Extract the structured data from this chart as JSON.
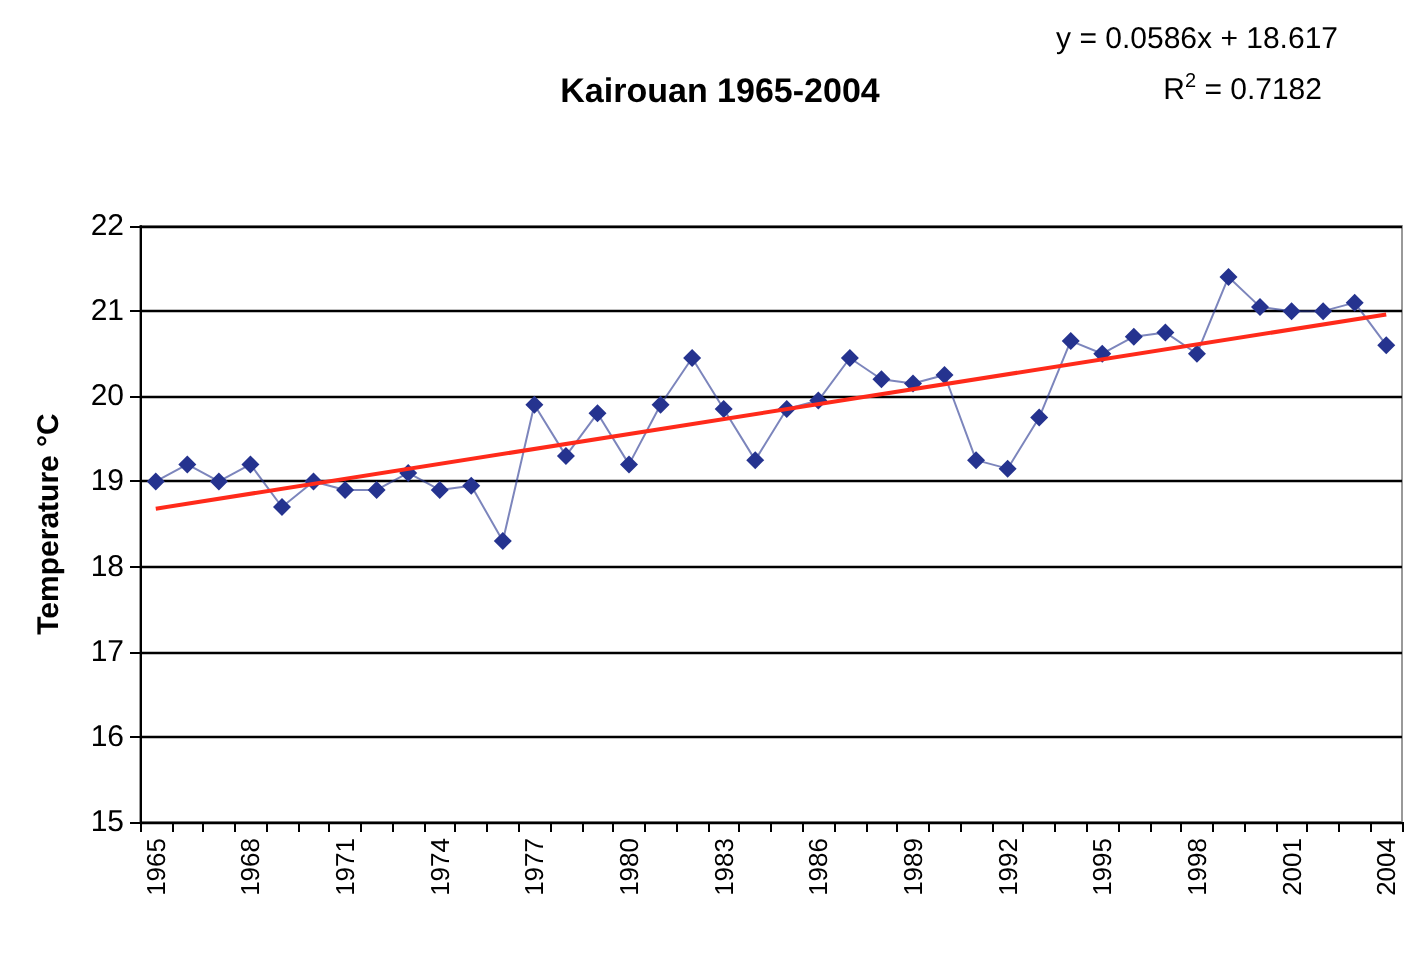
{
  "chart_data": {
    "type": "line",
    "title": "Kairouan 1965-2004",
    "ylabel": "Temperature °C",
    "categories": [
      "1965",
      null,
      null,
      "1968",
      null,
      null,
      "1971",
      null,
      null,
      "1974",
      null,
      null,
      "1977",
      null,
      null,
      "1980",
      null,
      null,
      "1983",
      null,
      null,
      "1986",
      null,
      null,
      "1989",
      null,
      null,
      "1992",
      null,
      null,
      "1995",
      null,
      null,
      "1998",
      null,
      null,
      "2001",
      null,
      null,
      "2004"
    ],
    "series": [
      {
        "color": "#25338f",
        "marker": "diamond",
        "values": [
          19.0,
          19.2,
          19.0,
          19.2,
          18.7,
          19.0,
          18.9,
          18.9,
          19.1,
          18.9,
          18.95,
          18.3,
          19.9,
          19.3,
          19.8,
          19.2,
          19.9,
          20.45,
          19.85,
          19.25,
          19.85,
          19.95,
          20.45,
          20.2,
          20.15,
          20.25,
          19.25,
          19.15,
          19.75,
          20.65,
          20.5,
          20.7,
          20.75,
          20.5,
          21.4,
          21.05,
          21.0,
          21.0,
          21.1,
          20.6
        ]
      },
      {
        "type": "line",
        "color": "#ff2a1a",
        "marker": "none",
        "values": [
          18.68,
          null,
          null,
          null,
          null,
          null,
          null,
          null,
          null,
          null,
          null,
          null,
          null,
          null,
          null,
          null,
          null,
          null,
          null,
          null,
          null,
          null,
          null,
          null,
          null,
          null,
          null,
          null,
          null,
          null,
          null,
          null,
          null,
          null,
          null,
          null,
          null,
          null,
          null,
          20.96
        ]
      }
    ],
    "ylim": [
      15,
      22
    ],
    "yticks": [
      15,
      16,
      17,
      18,
      19,
      20,
      21,
      22
    ],
    "grid": "y",
    "annotations": [
      "y = 0.0586x + 18.617",
      "R$^{2}$ = 0.7182"
    ]
  }
}
